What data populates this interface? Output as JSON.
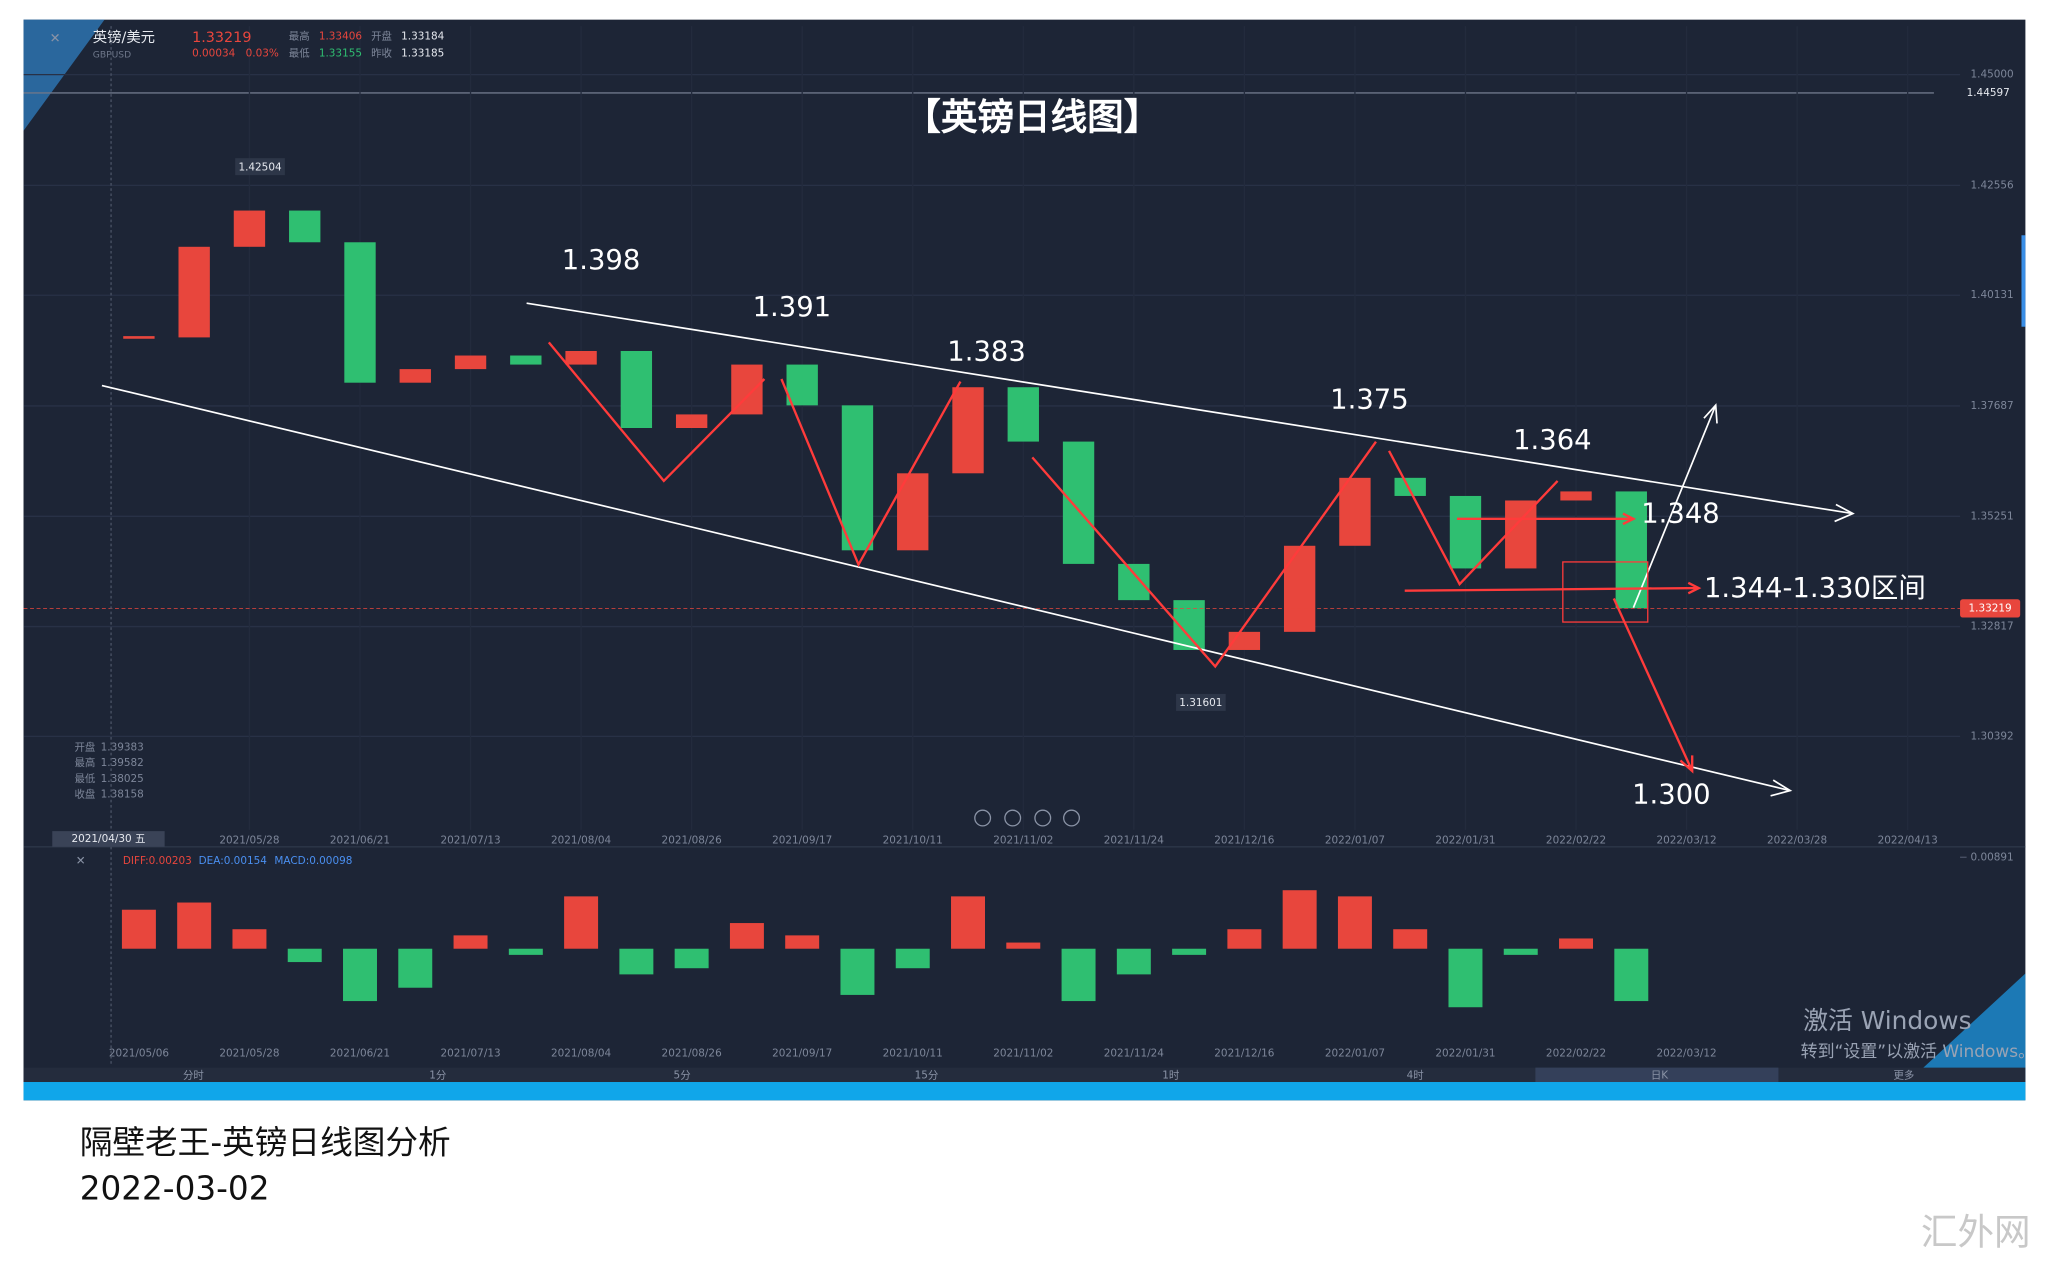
{
  "header": {
    "pair": "英镑/美元",
    "symbol": "GBPUSD",
    "change": "0.00034",
    "change_pct": "0.03%",
    "high_label": "最高",
    "high": "1.33406",
    "open_label": "开盘",
    "open": "1.33184",
    "low_label": "最低",
    "low": "1.33155",
    "prev_label": "昨收",
    "prev": "1.33185"
  },
  "crosshair": {
    "date": "2021/04/30 五",
    "open_label": "开盘",
    "open": "1.39383",
    "high_label": "最高",
    "high": "1.39582",
    "low_label": "最低",
    "low": "1.38025",
    "close_label": "收盘",
    "close": "1.38158"
  },
  "chart_data": [
    {
      "type": "candlestick",
      "title": "【英镑日线图】",
      "categories": [
        null,
        null,
        "2021/05/28",
        null,
        "2021/06/21",
        null,
        "2021/07/13",
        null,
        "2021/08/04",
        null,
        "2021/08/26",
        null,
        "2021/09/17",
        null,
        "2021/10/11",
        null,
        "2021/11/02",
        null,
        "2021/11/24",
        null,
        "2021/12/16",
        null,
        "2022/01/07",
        null,
        "2022/01/31",
        null,
        "2022/02/22",
        null,
        "2022/03/12",
        null,
        "2022/03/28",
        null,
        "2022/04/13"
      ],
      "values": [
        1.392,
        1.412,
        1.42,
        1.413,
        1.382,
        1.385,
        1.388,
        1.386,
        1.389,
        1.372,
        1.375,
        1.386,
        1.377,
        1.345,
        1.362,
        1.381,
        1.369,
        1.342,
        1.334,
        1.323,
        1.327,
        1.346,
        1.361,
        1.357,
        1.341,
        1.356,
        1.358,
        1.33219,
        null,
        null,
        null,
        null,
        null
      ],
      "up_color": "#e8463d",
      "down_color": "#2fbf71",
      "ylim": [
        1.2833,
        1.4607
      ],
      "yticks": [
        {
          "value": 1.45,
          "label": "1.45000"
        },
        {
          "value": 1.42556,
          "label": "1.42556"
        },
        {
          "value": 1.40131,
          "label": "1.40131"
        },
        {
          "value": 1.37687,
          "label": "1.37687"
        },
        {
          "value": 1.35251,
          "label": "1.35251"
        },
        {
          "value": 1.32817,
          "label": "1.32817"
        },
        {
          "value": 1.30392,
          "label": "1.30392"
        }
      ],
      "reference_line": {
        "value": 1.44597,
        "label": "1.44597"
      },
      "grid": true,
      "annotations": [
        "1.42504",
        "1.31601",
        "1.398",
        "1.391",
        "1.383",
        "1.375",
        "1.364",
        "1.348",
        "1.344-1.330区间",
        "1.300"
      ]
    },
    {
      "type": "bar",
      "legend": [
        "DIFF:0.00203",
        "DEA:0.00154",
        "MACD:0.00098"
      ],
      "categories": [
        "2021/05/06",
        null,
        "2021/05/28",
        null,
        "2021/06/21",
        null,
        "2021/07/13",
        null,
        "2021/08/04",
        null,
        "2021/08/26",
        null,
        "2021/09/17",
        null,
        "2021/10/11",
        null,
        "2021/11/02",
        null,
        "2021/11/24",
        null,
        "2021/12/16",
        null,
        "2022/01/07",
        null,
        "2022/01/31",
        null,
        "2022/02/22",
        null,
        "2022/03/12"
      ],
      "values": [
        0.0038,
        0.0045,
        0.0019,
        -0.0013,
        -0.0051,
        -0.0038,
        0.0013,
        -0.0006,
        0.0051,
        -0.0025,
        -0.0019,
        0.0025,
        0.0013,
        -0.0045,
        -0.0019,
        0.0051,
        0.0006,
        -0.0051,
        -0.0025,
        -0.0006,
        0.0019,
        0.0057,
        0.0051,
        0.0019,
        -0.0057,
        -0.0006,
        0.001,
        -0.0051,
        null
      ],
      "up_color": "#e8463d",
      "down_color": "#2fbf71",
      "ylim": [
        -0.00942,
        0.00942
      ],
      "yticks": [
        {
          "value": 0.00891,
          "label": "0.00891"
        }
      ]
    }
  ],
  "timeframes": [
    "分时",
    "1分",
    "5分",
    "15分",
    "1时",
    "4时",
    "日K",
    "更多"
  ],
  "os_watermark": [
    "激活 Windows",
    "转到“设置”以激活 Windows。"
  ],
  "caption": [
    "隔壁老王-英镑日线图分析",
    "2022-03-02"
  ],
  "site_watermark": "汇外网"
}
